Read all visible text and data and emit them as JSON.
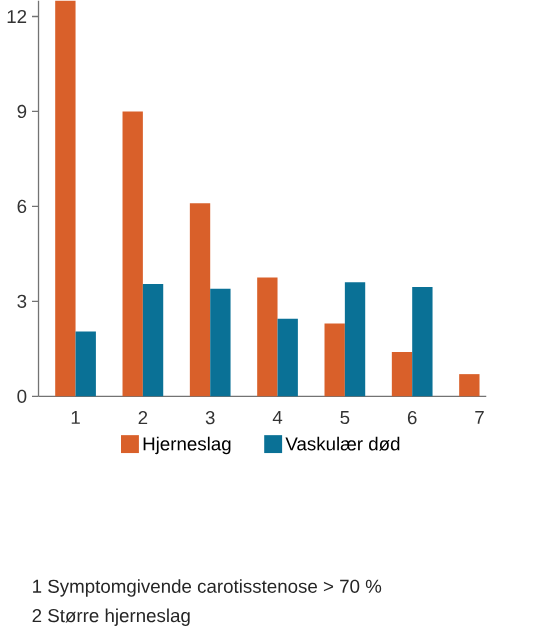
{
  "chart_data": {
    "type": "bar",
    "categories": [
      "1",
      "2",
      "3",
      "4",
      "5",
      "6",
      "7"
    ],
    "series": [
      {
        "name": "Hjerneslag",
        "color": "#d9602a",
        "values": [
          12.5,
          9.0,
          6.1,
          3.75,
          2.3,
          1.4,
          0.7
        ]
      },
      {
        "name": "Vaskulær død",
        "color": "#0a7196",
        "values": [
          2.05,
          3.55,
          3.4,
          2.45,
          3.6,
          3.45,
          null
        ]
      }
    ],
    "ylim": [
      0,
      12.5
    ],
    "yticks": [
      0,
      3,
      6,
      9,
      12
    ],
    "grid": false,
    "legend": "bottom",
    "annotations": [
      "1 Symptomgivende carotisstenose > 70 %",
      "2 Større hjerneslag"
    ]
  }
}
